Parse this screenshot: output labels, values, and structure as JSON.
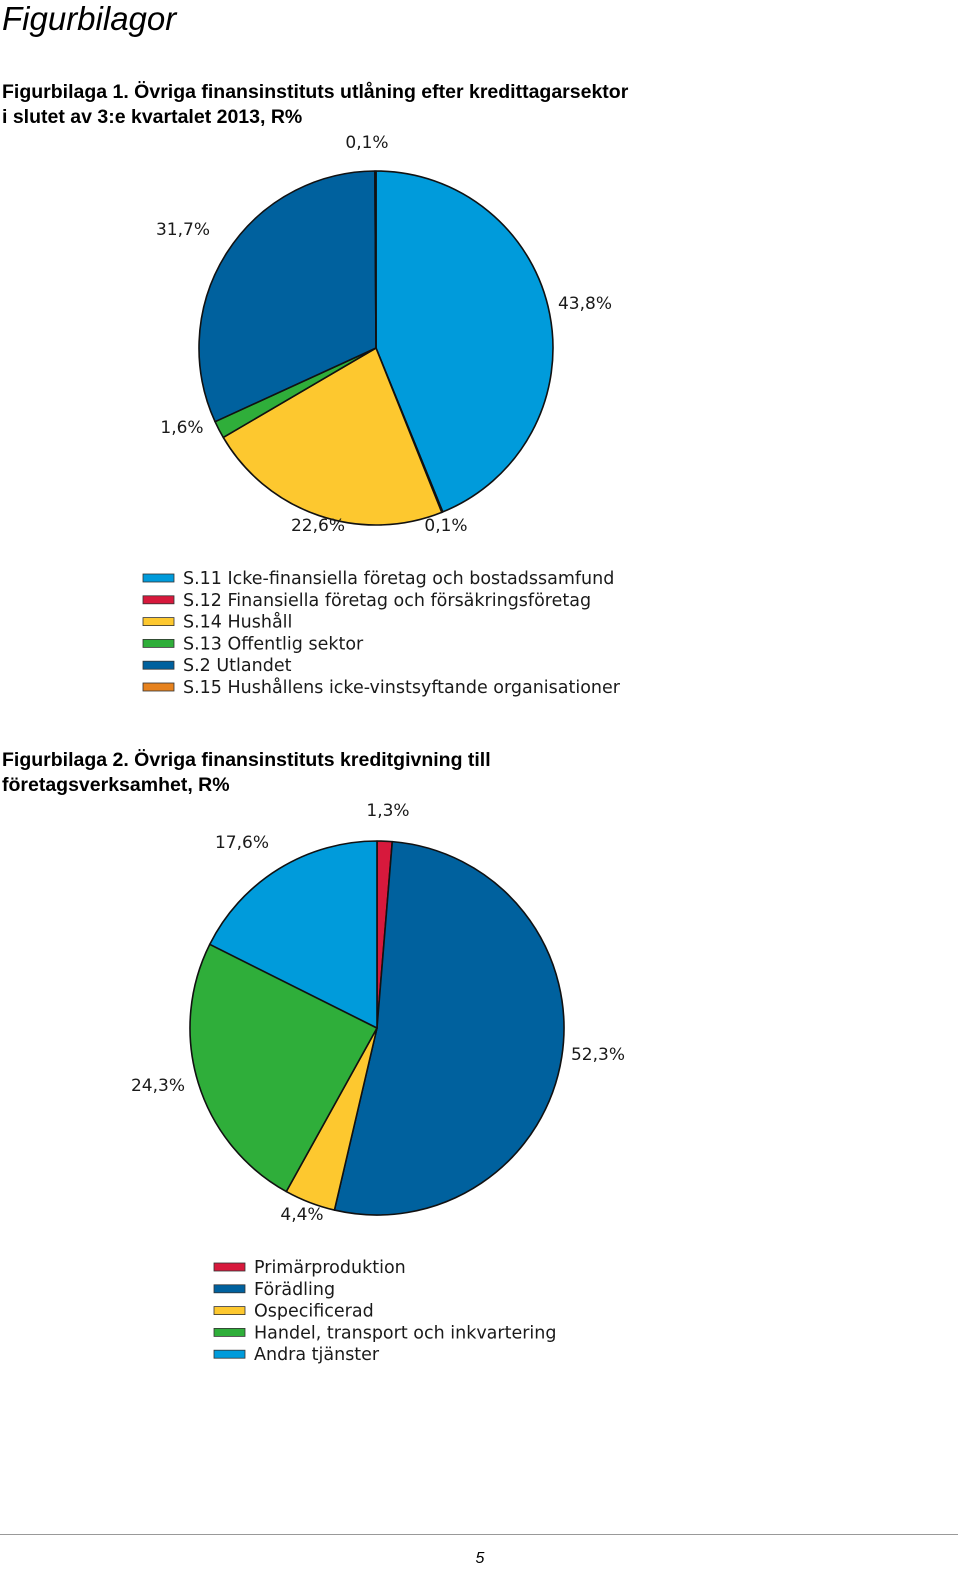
{
  "page": {
    "heading": "Figurbilagor",
    "page_number": "5"
  },
  "figures": [
    {
      "caption_lines": [
        "Figurbilaga 1. Övriga finansinstituts utlåning efter kredittagarsektor",
        "i slutet av 3:e kvartalet 2013, R%"
      ]
    },
    {
      "caption_lines": [
        "Figurbilaga 2. Övriga finansinstituts kreditgivning till",
        "företagsverksamhet, R%"
      ]
    }
  ],
  "chart_data": [
    {
      "type": "pie",
      "title": "Figurbilaga 1. Övriga finansinstituts utlåning efter kredittagarsektor i slutet av 3:e kvartalet 2013, R%",
      "unit": "%",
      "legend_position": "bottom-left",
      "slices": [
        {
          "name": "S.11 Icke-finansiella företag och bostadssamfund",
          "value": 43.8,
          "label": "43,8%",
          "color": "#009bdb"
        },
        {
          "name": "S.12 Finansiella företag och försäkringsföretag",
          "value": 0.1,
          "label": "0,1%",
          "color": "#d7193c"
        },
        {
          "name": "S.14 Hushåll",
          "value": 22.6,
          "label": "22,6%",
          "color": "#fdc82f"
        },
        {
          "name": "S.13 Offentlig sektor",
          "value": 1.6,
          "label": "1,6%",
          "color": "#2fae3a"
        },
        {
          "name": "S.2 Utlandet",
          "value": 31.7,
          "label": "31,7%",
          "color": "#00619e"
        },
        {
          "name": "S.15 Hushållens icke-vinstsyftande organisationer",
          "value": 0.1,
          "label": "0,1%",
          "color": "#e6821e"
        }
      ]
    },
    {
      "type": "pie",
      "title": "Figurbilaga 2. Övriga finansinstituts kreditgivning till företagsverksamhet, R%",
      "unit": "%",
      "legend_position": "bottom-left",
      "slices": [
        {
          "name": "Primärproduktion",
          "value": 1.3,
          "label": "1,3%",
          "color": "#d7193c"
        },
        {
          "name": "Förädling",
          "value": 52.3,
          "label": "52,3%",
          "color": "#00619e"
        },
        {
          "name": "Ospecificerad",
          "value": 4.4,
          "label": "4,4%",
          "color": "#fdc82f"
        },
        {
          "name": "Handel, transport och inkvartering",
          "value": 24.3,
          "label": "24,3%",
          "color": "#2fae3a"
        },
        {
          "name": "Andra tjänster",
          "value": 17.6,
          "label": "17,6%",
          "color": "#009bdb"
        }
      ]
    }
  ]
}
